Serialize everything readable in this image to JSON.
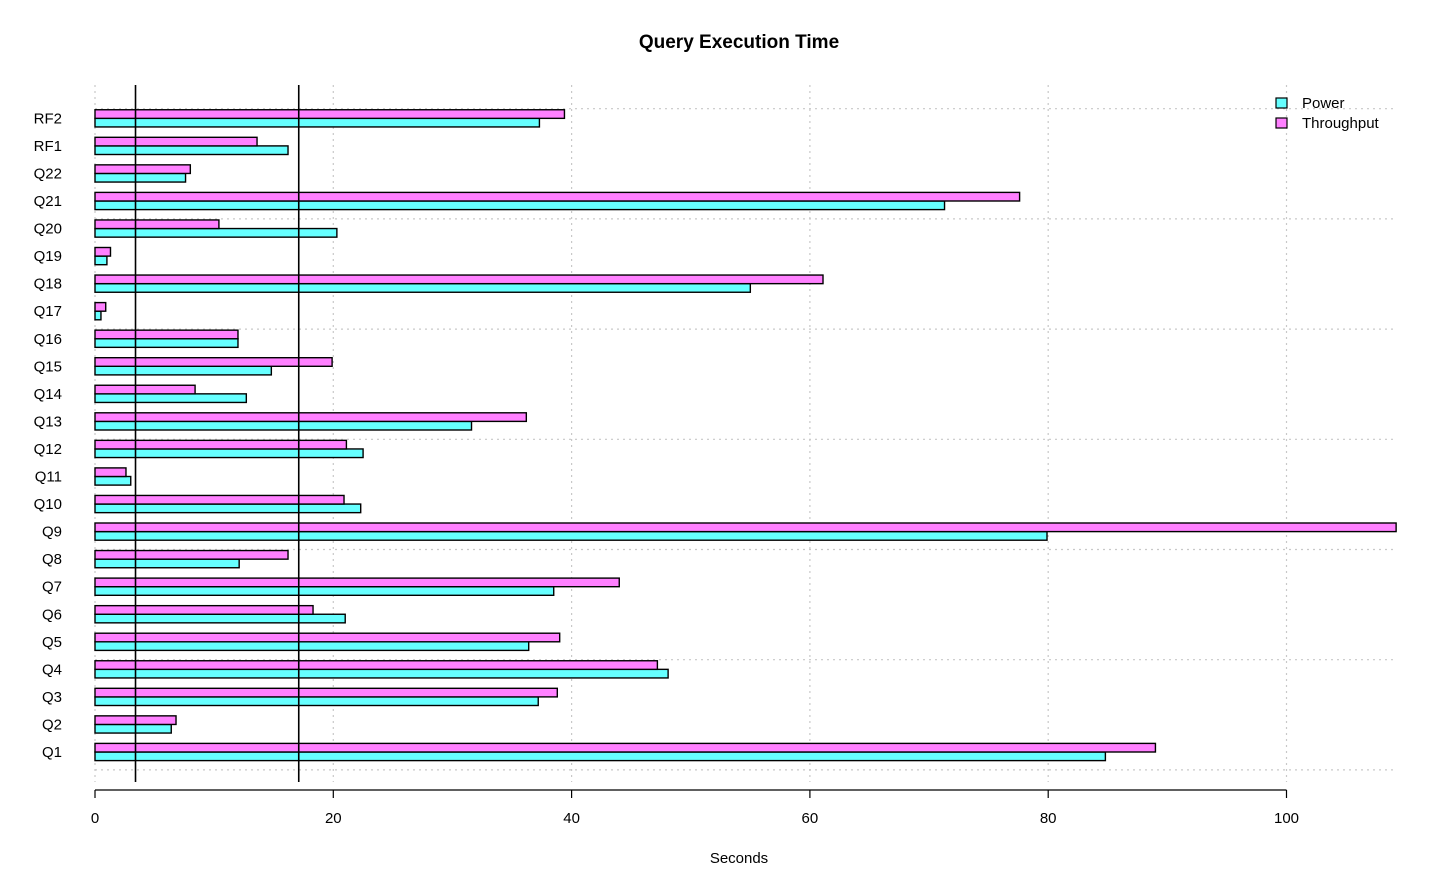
{
  "chart_data": {
    "type": "bar",
    "orientation": "horizontal",
    "title": "Query Execution Time",
    "xlabel": "Seconds",
    "ylabel": "",
    "xlim": [
      0,
      109.2
    ],
    "xticks": [
      0,
      20,
      40,
      60,
      80,
      100
    ],
    "grid": true,
    "legend_position": "top-right",
    "categories": [
      "Q1",
      "Q2",
      "Q3",
      "Q4",
      "Q5",
      "Q6",
      "Q7",
      "Q8",
      "Q9",
      "Q10",
      "Q11",
      "Q12",
      "Q13",
      "Q14",
      "Q15",
      "Q16",
      "Q17",
      "Q18",
      "Q19",
      "Q20",
      "Q21",
      "Q22",
      "RF1",
      "RF2"
    ],
    "series": [
      {
        "name": "Power",
        "color": "#66ffff",
        "values": [
          84.8,
          6.4,
          37.2,
          48.1,
          36.4,
          21.0,
          38.5,
          12.1,
          79.9,
          22.3,
          3.0,
          22.5,
          31.6,
          12.7,
          14.8,
          12.0,
          0.5,
          55.0,
          1.0,
          20.3,
          71.3,
          7.6,
          16.2,
          37.3
        ]
      },
      {
        "name": "Throughput",
        "color": "#ff80ff",
        "values": [
          89.0,
          6.8,
          38.8,
          47.2,
          39.0,
          18.3,
          44.0,
          16.2,
          109.2,
          20.9,
          2.6,
          21.1,
          36.2,
          8.4,
          19.9,
          12.0,
          0.9,
          61.1,
          1.3,
          10.4,
          77.6,
          8.0,
          13.6,
          39.4
        ]
      }
    ],
    "reference_lines_x": [
      3.4,
      17.1
    ]
  }
}
